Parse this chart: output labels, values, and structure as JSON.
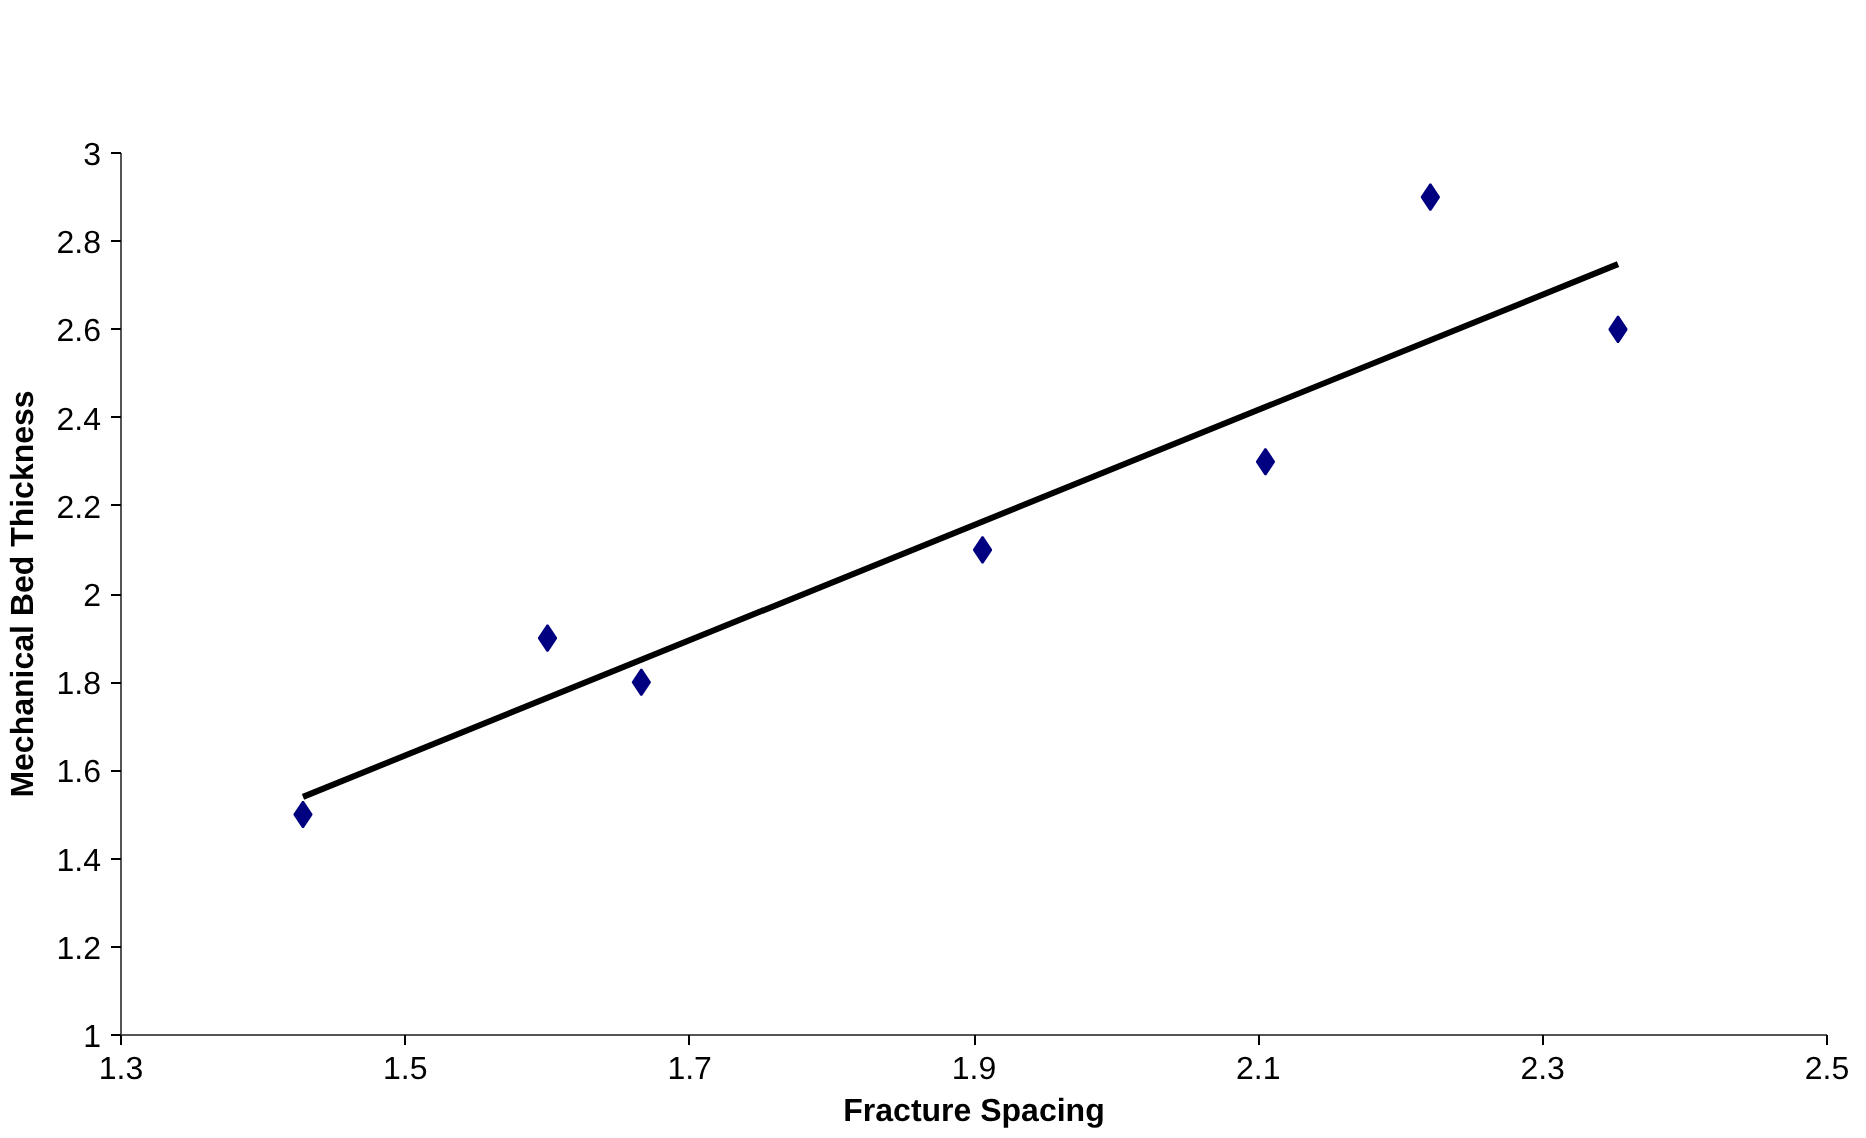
{
  "chart_data": {
    "type": "scatter",
    "xlabel": "Fracture Spacing",
    "ylabel": "Mechanical Bed Thickness",
    "series": [
      {
        "color": "#000080",
        "marker": "diamond",
        "x": [
          1.428,
          1.6,
          1.666,
          1.906,
          2.105,
          2.221,
          2.353
        ],
        "values": [
          1.5,
          1.9,
          1.8,
          2.1,
          2.3,
          2.9,
          2.6
        ]
      },
      {
        "type": "line",
        "color": "#000000",
        "line_style": "solid",
        "x": [
          1.428,
          2.353
        ],
        "values": [
          1.54,
          2.748
        ]
      }
    ],
    "xlim": [
      1.3,
      2.5
    ],
    "xticks": [
      1.3,
      1.5,
      1.7,
      1.9,
      2.1,
      2.3,
      2.5
    ],
    "ylim": [
      1,
      3
    ],
    "yticks": [
      1,
      1.2,
      1.4,
      1.6,
      1.8,
      2,
      2.2,
      2.4,
      2.6,
      2.8,
      3
    ],
    "grid": false
  }
}
